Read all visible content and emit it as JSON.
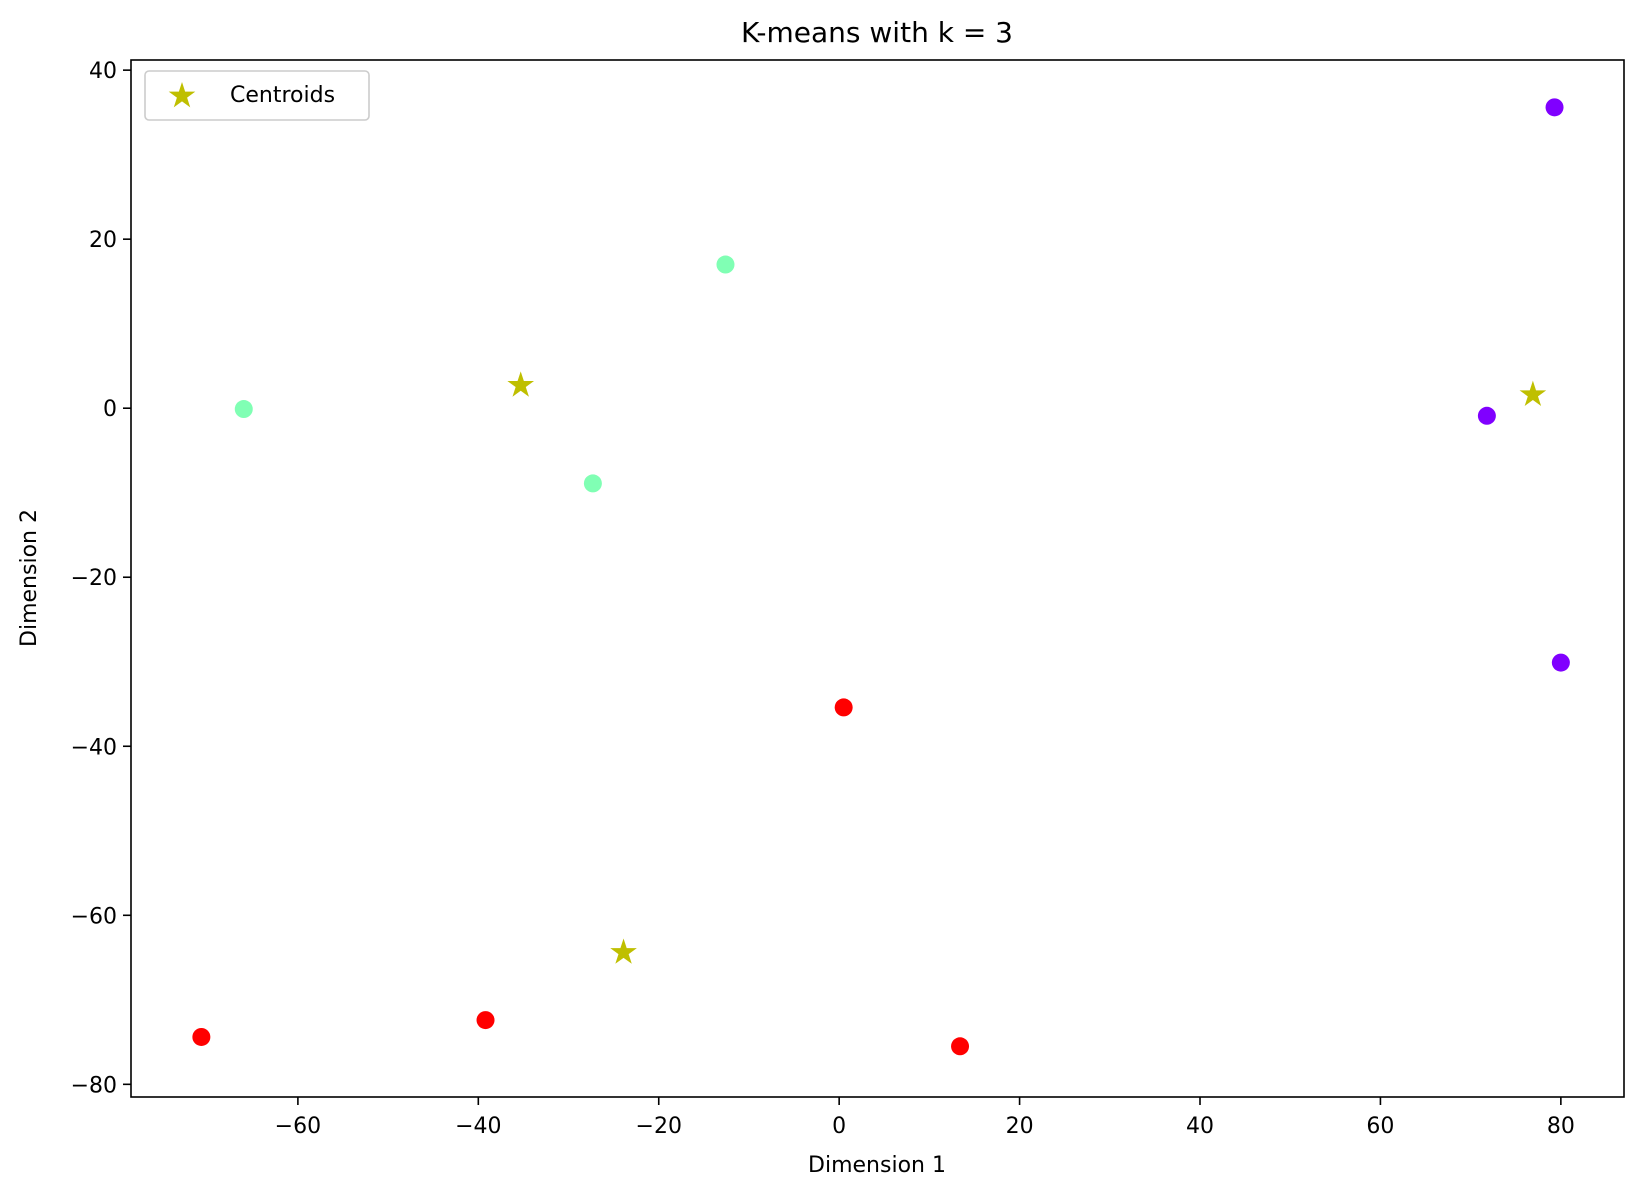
{
  "chart_data": {
    "type": "scatter",
    "title": "K-means with k = 3",
    "xlabel": "Dimension 1",
    "ylabel": "Dimension 2",
    "xlim": [
      -78.5,
      87
    ],
    "ylim": [
      -81.5,
      41.2
    ],
    "xticks": [
      -60,
      -40,
      -20,
      0,
      20,
      40,
      60,
      80
    ],
    "yticks": [
      -80,
      -60,
      -40,
      -20,
      0,
      20,
      40
    ],
    "xtick_labels": [
      "−60",
      "−40",
      "−20",
      "0",
      "20",
      "40",
      "60",
      "80"
    ],
    "ytick_labels": [
      "−80",
      "−60",
      "−40",
      "−20",
      "0",
      "20",
      "40"
    ],
    "grid": false,
    "legend_position": "top-left",
    "legend": [
      {
        "label": "Centroids",
        "marker": "star",
        "color": "#bfbf00"
      }
    ],
    "points": [
      {
        "x": 79.3,
        "y": 35.6,
        "cluster": 0,
        "color": "#8000ff"
      },
      {
        "x": 71.8,
        "y": -0.9,
        "cluster": 0,
        "color": "#8000ff"
      },
      {
        "x": 80.0,
        "y": -30.1,
        "cluster": 0,
        "color": "#8000ff"
      },
      {
        "x": -12.6,
        "y": 17.0,
        "cluster": 1,
        "color": "#80ffb4"
      },
      {
        "x": -66.0,
        "y": -0.1,
        "cluster": 1,
        "color": "#80ffb4"
      },
      {
        "x": -27.3,
        "y": -8.9,
        "cluster": 1,
        "color": "#80ffb4"
      },
      {
        "x": 0.5,
        "y": -35.4,
        "cluster": 2,
        "color": "#ff0000"
      },
      {
        "x": -70.7,
        "y": -74.4,
        "cluster": 2,
        "color": "#ff0000"
      },
      {
        "x": -39.2,
        "y": -72.4,
        "cluster": 2,
        "color": "#ff0000"
      },
      {
        "x": 13.4,
        "y": -75.5,
        "cluster": 2,
        "color": "#ff0000"
      }
    ],
    "centroids": [
      {
        "x": -35.3,
        "y": 2.7
      },
      {
        "x": 76.9,
        "y": 1.6
      },
      {
        "x": -23.9,
        "y": -64.4
      }
    ]
  }
}
